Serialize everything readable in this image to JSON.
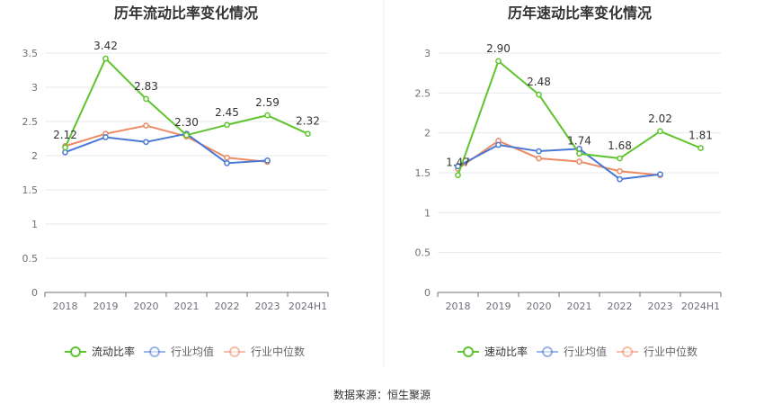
{
  "source_text": "数据来源：恒生聚源",
  "colors": {
    "green": "#5ec42e",
    "blue": "#4a78d6",
    "orange": "#ec8a64",
    "grid": "#e6e8ee",
    "axis": "#6e7079"
  },
  "chart_data": [
    {
      "type": "line",
      "title": "历年流动比率变化情况",
      "categories": [
        "2018",
        "2019",
        "2020",
        "2021",
        "2022",
        "2023",
        "2024H1"
      ],
      "ylim": [
        0,
        3.5
      ],
      "yticks": [
        "0",
        "0.5",
        "1",
        "1.5",
        "2",
        "2.5",
        "3",
        "3.5"
      ],
      "grid": true,
      "legend_position": "bottom",
      "series": [
        {
          "name": "流动比率",
          "color": "#5ec42e",
          "values": [
            2.12,
            3.42,
            2.83,
            2.3,
            2.45,
            2.59,
            2.32
          ],
          "labels": [
            "2.12",
            "3.42",
            "2.83",
            "2.30",
            "2.45",
            "2.59",
            "2.32"
          ]
        },
        {
          "name": "行业均值",
          "color": "#4a78d6",
          "values": [
            2.05,
            2.27,
            2.2,
            2.32,
            1.89,
            1.93,
            null
          ]
        },
        {
          "name": "行业中位数",
          "color": "#ec8a64",
          "values": [
            2.14,
            2.32,
            2.44,
            2.28,
            1.97,
            1.91,
            null
          ]
        }
      ]
    },
    {
      "type": "line",
      "title": "历年速动比率变化情况",
      "categories": [
        "2018",
        "2019",
        "2020",
        "2021",
        "2022",
        "2023",
        "2024H1"
      ],
      "ylim": [
        0,
        3
      ],
      "yticks": [
        "0",
        "0.5",
        "1",
        "1.5",
        "2",
        "2.5",
        "3"
      ],
      "grid": true,
      "legend_position": "bottom",
      "series": [
        {
          "name": "速动比率",
          "color": "#5ec42e",
          "values": [
            1.47,
            2.9,
            2.48,
            1.74,
            1.68,
            2.02,
            1.81
          ],
          "labels": [
            "1.47",
            "2.90",
            "2.48",
            "1.74",
            "1.68",
            "2.02",
            "1.81"
          ]
        },
        {
          "name": "行业均值",
          "color": "#4a78d6",
          "values": [
            1.58,
            1.85,
            1.77,
            1.8,
            1.42,
            1.48,
            null
          ]
        },
        {
          "name": "行业中位数",
          "color": "#ec8a64",
          "values": [
            1.55,
            1.9,
            1.68,
            1.64,
            1.52,
            1.47,
            null
          ]
        }
      ]
    }
  ]
}
